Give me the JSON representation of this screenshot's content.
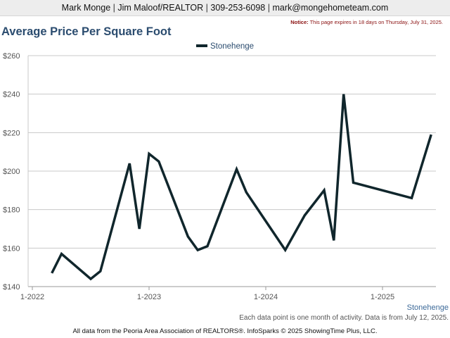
{
  "header": {
    "agent_name": "Mark Monge",
    "team": "Jim Maloof/REALTOR",
    "phone": "309-253-6098",
    "email": "mark@mongehometeam.com"
  },
  "notice": {
    "label": "Notice:",
    "text": "This page expires in 18 days on Thursday, July 31, 2025."
  },
  "chart_data": {
    "type": "line",
    "title": "Average Price Per Square Foot",
    "xlabel": "",
    "ylabel": "",
    "ylim": [
      140,
      260
    ],
    "yticks": [
      140,
      160,
      180,
      200,
      220,
      240,
      260
    ],
    "ytick_labels": [
      "$140",
      "$160",
      "$180",
      "$200",
      "$220",
      "$240",
      "$260"
    ],
    "xticks": [
      "2022-01",
      "2023-01",
      "2024-01",
      "2025-01"
    ],
    "xtick_labels": [
      "1-2022",
      "1-2023",
      "1-2024",
      "1-2025"
    ],
    "grid": true,
    "legend_position": "top-center",
    "series_color": "#10262c",
    "series": [
      {
        "name": "Stonehenge",
        "points": [
          {
            "x": "2022-03",
            "y": 147
          },
          {
            "x": "2022-04",
            "y": 157
          },
          {
            "x": "2022-07",
            "y": 144
          },
          {
            "x": "2022-08",
            "y": 148
          },
          {
            "x": "2022-11",
            "y": 204
          },
          {
            "x": "2022-12",
            "y": 170
          },
          {
            "x": "2023-01",
            "y": 209
          },
          {
            "x": "2023-02",
            "y": 205
          },
          {
            "x": "2023-05",
            "y": 166
          },
          {
            "x": "2023-06",
            "y": 159
          },
          {
            "x": "2023-07",
            "y": 161
          },
          {
            "x": "2023-10",
            "y": 201
          },
          {
            "x": "2023-11",
            "y": 189
          },
          {
            "x": "2024-03",
            "y": 159
          },
          {
            "x": "2024-05",
            "y": 177
          },
          {
            "x": "2024-07",
            "y": 190
          },
          {
            "x": "2024-08",
            "y": 164
          },
          {
            "x": "2024-09",
            "y": 240
          },
          {
            "x": "2024-10",
            "y": 194
          },
          {
            "x": "2025-04",
            "y": 186
          },
          {
            "x": "2025-06",
            "y": 219
          }
        ]
      }
    ],
    "series_label": "Stonehenge"
  },
  "footnote": "Each data point is one month of activity. Data is from July 12, 2025.",
  "footer": "All data from the Peoria Area Association of REALTORS®. InfoSparks © 2025 ShowingTime Plus, LLC."
}
